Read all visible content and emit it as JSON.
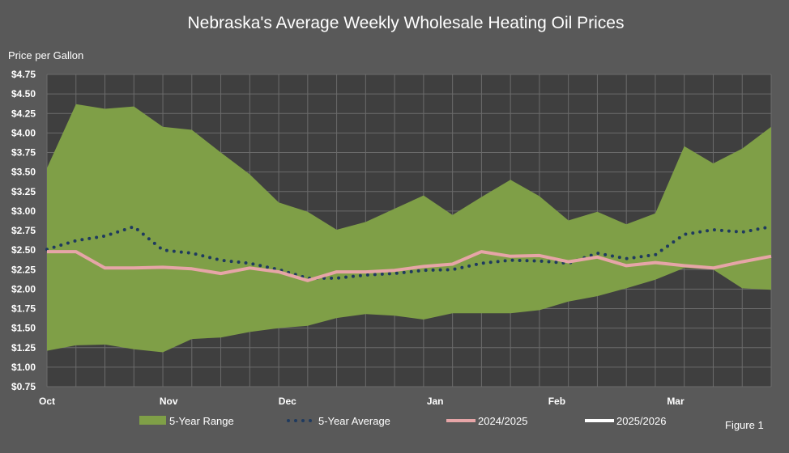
{
  "chart_data": {
    "type": "area",
    "title": "Nebraska's Average Weekly Wholesale Heating Oil Prices",
    "ylabel": "Price per Gallon",
    "xlabel": "",
    "figure_label": "Figure 1",
    "ylim": [
      0.75,
      4.75
    ],
    "y_ticks": [
      "$0.75",
      "$1.00",
      "$1.25",
      "$1.50",
      "$1.75",
      "$2.00",
      "$2.25",
      "$2.50",
      "$2.75",
      "$3.00",
      "$3.25",
      "$3.50",
      "$3.75",
      "$4.00",
      "$4.25",
      "$4.50",
      "$4.75"
    ],
    "x_week_count": 26,
    "x_ticks": [
      {
        "label": "Oct",
        "week": 0
      },
      {
        "label": "Nov",
        "week": 4.2
      },
      {
        "label": "Dec",
        "week": 8.3
      },
      {
        "label": "Jan",
        "week": 13.4
      },
      {
        "label": "Feb",
        "week": 17.6
      },
      {
        "label": "Mar",
        "week": 21.7
      }
    ],
    "grid": true,
    "legend_position": "bottom",
    "colors": {
      "background": "#595959",
      "plot_area": "#3f3f3f",
      "range_fill": "#7f9f47",
      "average_line": "#1f3a5f",
      "current_season_line": "#e6a5a7",
      "next_season_line": "#ffffff",
      "gridline": "#6b6b6b"
    },
    "series": [
      {
        "name": "5-Year Range",
        "kind": "range",
        "high": [
          3.55,
          4.37,
          4.31,
          4.34,
          4.08,
          4.04,
          3.75,
          3.47,
          3.11,
          2.99,
          2.76,
          2.86,
          3.03,
          3.2,
          2.95,
          3.18,
          3.4,
          3.19,
          2.88,
          2.99,
          2.83,
          2.97,
          3.83,
          3.61,
          3.8,
          4.08
        ],
        "low": [
          1.21,
          1.28,
          1.29,
          1.23,
          1.19,
          1.36,
          1.38,
          1.45,
          1.5,
          1.53,
          1.63,
          1.68,
          1.66,
          1.61,
          1.69,
          1.69,
          1.69,
          1.73,
          1.84,
          1.91,
          2.01,
          2.12,
          2.27,
          2.25,
          2.01,
          1.99
        ]
      },
      {
        "name": "5-Year Average",
        "kind": "line-dotted",
        "values": [
          2.51,
          2.62,
          2.68,
          2.8,
          2.5,
          2.46,
          2.37,
          2.33,
          2.25,
          2.14,
          2.14,
          2.18,
          2.2,
          2.24,
          2.25,
          2.33,
          2.37,
          2.36,
          2.33,
          2.46,
          2.39,
          2.44,
          2.7,
          2.76,
          2.73,
          2.8
        ]
      },
      {
        "name": "2024/2025",
        "kind": "line",
        "values": [
          2.48,
          2.48,
          2.27,
          2.27,
          2.28,
          2.26,
          2.2,
          2.27,
          2.22,
          2.11,
          2.22,
          2.22,
          2.24,
          2.29,
          2.32,
          2.48,
          2.42,
          2.43,
          2.35,
          2.41,
          2.3,
          2.34,
          2.3,
          2.27,
          2.35,
          2.42
        ]
      },
      {
        "name": "2025/2026",
        "kind": "line",
        "values": []
      }
    ]
  }
}
